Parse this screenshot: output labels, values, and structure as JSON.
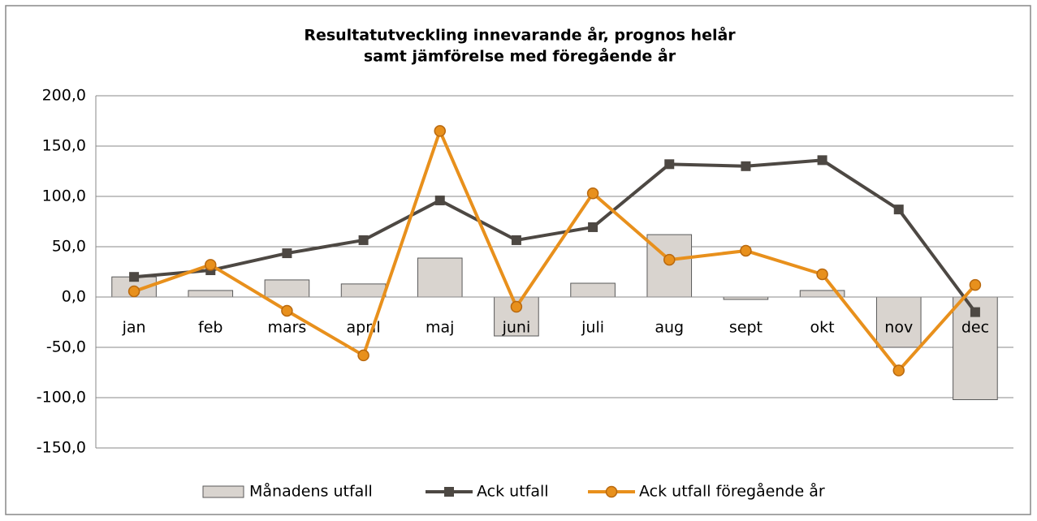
{
  "chart_data": {
    "type": "bar+line",
    "title": [
      "Resultatutveckling innevarande år, prognos helår",
      "samt jämförelse med föregående år"
    ],
    "categories": [
      "jan",
      "feb",
      "mars",
      "april",
      "maj",
      "juni",
      "juli",
      "aug",
      "sept",
      "okt",
      "nov",
      "dec"
    ],
    "series": [
      {
        "name": "Månadens utfall",
        "type": "bar",
        "color": "#d9d4cf",
        "values": [
          20,
          6.5,
          17,
          13,
          38.7,
          -38.7,
          13.7,
          62,
          -2.4,
          6.5,
          -50,
          -102
        ]
      },
      {
        "name": "Ack utfall",
        "type": "line",
        "marker": "square",
        "color": "#4d4843",
        "values": [
          20,
          26.6,
          43.5,
          56.5,
          96,
          56.5,
          69.4,
          132,
          130,
          136,
          87,
          -15
        ]
      },
      {
        "name": "Ack utfall föregående år",
        "type": "line",
        "marker": "circle",
        "color": "#e8901c",
        "values": [
          5.6,
          32,
          -13.7,
          -58,
          165,
          -9.7,
          103,
          37,
          46,
          22.6,
          -73,
          12
        ]
      }
    ],
    "ylim": [
      -150,
      200
    ],
    "yticks": [
      {
        "value": -150,
        "label": "-150,0"
      },
      {
        "value": -100,
        "label": "-100,0"
      },
      {
        "value": -50,
        "label": "-50,0"
      },
      {
        "value": 0,
        "label": "0,0"
      },
      {
        "value": 50,
        "label": "50,0"
      },
      {
        "value": 100,
        "label": "100,0"
      },
      {
        "value": 150,
        "label": "150,0"
      },
      {
        "value": 200,
        "label": "200,0"
      }
    ],
    "grid": true,
    "legend": "bottom"
  }
}
